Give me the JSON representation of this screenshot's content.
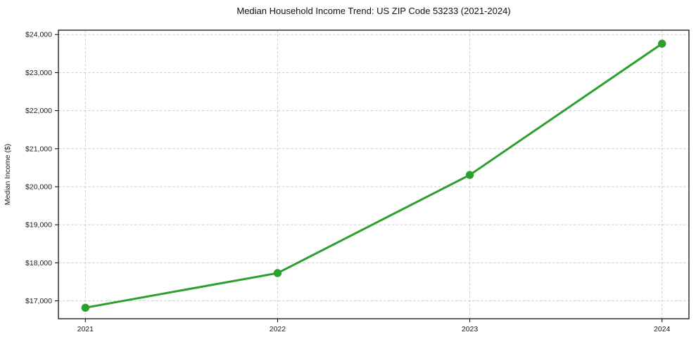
{
  "chart_data": {
    "type": "line",
    "title": "Median Household Income Trend: US ZIP Code 53233 (2021-2024)",
    "xlabel": "",
    "ylabel": "Median Income ($)",
    "categories": [
      "2021",
      "2022",
      "2023",
      "2024"
    ],
    "series": [
      {
        "name": "Median Household Income",
        "values": [
          16820,
          17730,
          20310,
          23760
        ],
        "color": "#2ca02c",
        "marker": "circle"
      }
    ],
    "yticks": [
      {
        "value": 17000,
        "label": "$17,000"
      },
      {
        "value": 18000,
        "label": "$18,000"
      },
      {
        "value": 19000,
        "label": "$19,000"
      },
      {
        "value": 20000,
        "label": "$20,000"
      },
      {
        "value": 21000,
        "label": "$21,000"
      },
      {
        "value": 22000,
        "label": "$22,000"
      },
      {
        "value": 23000,
        "label": "$23,000"
      },
      {
        "value": 24000,
        "label": "$24,000"
      }
    ],
    "ylim": [
      16530,
      24115
    ],
    "grid": true,
    "grid_color": "#cdcdcd",
    "legend": false,
    "background": "#ffffff",
    "line_color": "#2ca02c"
  }
}
